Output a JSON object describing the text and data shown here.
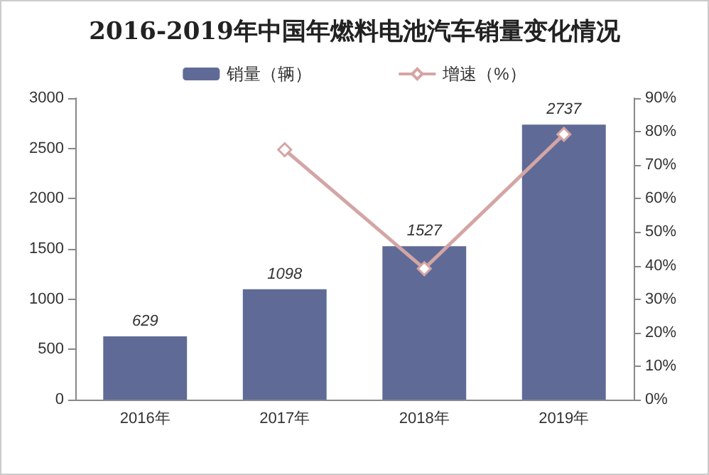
{
  "chart_data": {
    "type": "bar",
    "title": "2016-2019年中国年燃料电池汽车销量变化情况",
    "categories": [
      "2016年",
      "2017年",
      "2018年",
      "2019年"
    ],
    "series": [
      {
        "name": "销量（辆）",
        "color": "#5f6b96",
        "values": [
          629,
          1098,
          1527,
          2737
        ],
        "data_labels": true
      },
      {
        "name": "增速（%）",
        "type": "line",
        "axis": "y2",
        "color": "#d4a5a5",
        "values": [
          null,
          74.6,
          39.1,
          79.2
        ],
        "marker": "diamond"
      }
    ],
    "ylim": [
      0,
      3000
    ],
    "yticks": [
      0,
      500,
      1000,
      1500,
      2000,
      2500,
      3000
    ],
    "y2lim": [
      0,
      90
    ],
    "y2ticks": [
      {
        "value": 0,
        "label": "0%"
      },
      {
        "value": 10,
        "label": "10%"
      },
      {
        "value": 20,
        "label": "20%"
      },
      {
        "value": 30,
        "label": "30%"
      },
      {
        "value": 40,
        "label": "40%"
      },
      {
        "value": 50,
        "label": "50%"
      },
      {
        "value": 60,
        "label": "60%"
      },
      {
        "value": 70,
        "label": "70%"
      },
      {
        "value": 80,
        "label": "80%"
      },
      {
        "value": 90,
        "label": "90%"
      }
    ],
    "grid": false,
    "legend": "top"
  }
}
